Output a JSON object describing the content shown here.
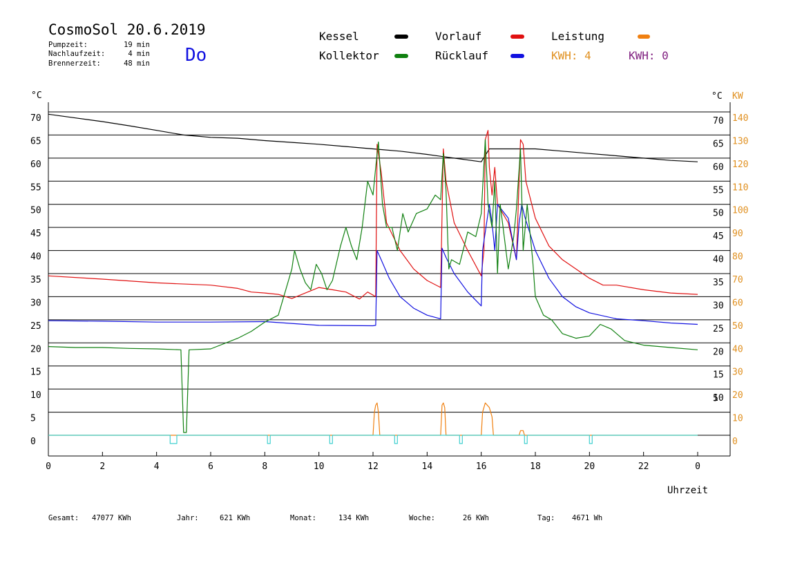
{
  "header": {
    "title": "CosmoSol 20.6.2019",
    "day": "Do",
    "stats": [
      {
        "label": "Pumpzeit:",
        "value": "19 min"
      },
      {
        "label": "Nachlaufzeit:",
        "value": "4 min"
      },
      {
        "label": "Brennerzeit:",
        "value": "48 min"
      }
    ]
  },
  "legend": [
    {
      "label": "Kessel",
      "color": "#000000"
    },
    {
      "label": "Vorlauf",
      "color": "#e01010"
    },
    {
      "label": "Leistung",
      "color": "#f08010"
    },
    {
      "label": "Kollektor",
      "color": "#108010"
    },
    {
      "label": "Rücklauf",
      "color": "#1010e0"
    }
  ],
  "kwh": [
    {
      "label": "KWH: 4",
      "color": "#e09020"
    },
    {
      "label": "KWH: 0",
      "color": "#802080"
    }
  ],
  "footer": [
    {
      "label": "Gesamt:",
      "value": "47077 KWh"
    },
    {
      "label": "Jahr:",
      "value": "621 KWh"
    },
    {
      "label": "Monat:",
      "value": "134 KWh"
    },
    {
      "label": "Woche:",
      "value": "26 KWh"
    },
    {
      "label": "Tag:",
      "value": "4671 Wh"
    }
  ],
  "chart_data": {
    "type": "line",
    "xlabel": "Uhrzeit",
    "ylabel_left": "°C",
    "ylabel_right_temp": "°C",
    "ylabel_right_power": "KW",
    "xlim": [
      0,
      24
    ],
    "ylim": [
      0,
      70
    ],
    "x_ticks": [
      "0",
      "2",
      "4",
      "6",
      "8",
      "10",
      "12",
      "14",
      "16",
      "18",
      "20",
      "22",
      "0"
    ],
    "y_ticks_left": [
      "0",
      "5",
      "10",
      "15",
      "20",
      "25",
      "30",
      "35",
      "40",
      "45",
      "50",
      "55",
      "60",
      "65",
      "70"
    ],
    "y_ticks_right": [
      "5",
      "10",
      "15",
      "20",
      "25",
      "30",
      "35",
      "40",
      "45",
      "50",
      "55",
      "60",
      "65",
      "70"
    ],
    "y_ticks_power": [
      "0",
      "10",
      "20",
      "30",
      "40",
      "50",
      "60",
      "70",
      "80",
      "90",
      "100",
      "110",
      "120",
      "130",
      "140"
    ],
    "grid": true,
    "series": [
      {
        "name": "Kessel",
        "color": "#000000",
        "points": [
          [
            0,
            69.5
          ],
          [
            1,
            68.7
          ],
          [
            2,
            67.9
          ],
          [
            3,
            67
          ],
          [
            4,
            66
          ],
          [
            5,
            65
          ],
          [
            6,
            64.5
          ],
          [
            7,
            64.3
          ],
          [
            8,
            63.8
          ],
          [
            9,
            63.4
          ],
          [
            10,
            63
          ],
          [
            11,
            62.5
          ],
          [
            12,
            62
          ],
          [
            13,
            61.5
          ],
          [
            14,
            60.8
          ],
          [
            15,
            60
          ],
          [
            16,
            59.2
          ],
          [
            16.3,
            62
          ],
          [
            17,
            62
          ],
          [
            17.5,
            62
          ],
          [
            18,
            62
          ],
          [
            19,
            61.5
          ],
          [
            20,
            61
          ],
          [
            21,
            60.5
          ],
          [
            22,
            60
          ],
          [
            23,
            59.5
          ],
          [
            24,
            59.2
          ]
        ]
      },
      {
        "name": "Vorlauf",
        "color": "#e01010",
        "points": [
          [
            0,
            34.5
          ],
          [
            2,
            33.8
          ],
          [
            4,
            33
          ],
          [
            6,
            32.5
          ],
          [
            7,
            31.8
          ],
          [
            7.5,
            31
          ],
          [
            8,
            30.8
          ],
          [
            8.5,
            30.5
          ],
          [
            9,
            29.6
          ],
          [
            9.5,
            30.8
          ],
          [
            10,
            32
          ],
          [
            10.5,
            31.5
          ],
          [
            11,
            31
          ],
          [
            11.5,
            29.5
          ],
          [
            11.8,
            31
          ],
          [
            12.1,
            30
          ],
          [
            12.15,
            63
          ],
          [
            12.3,
            57
          ],
          [
            12.5,
            46
          ],
          [
            13,
            40
          ],
          [
            13.5,
            36
          ],
          [
            14,
            33.5
          ],
          [
            14.5,
            32
          ],
          [
            14.6,
            62
          ],
          [
            14.7,
            55
          ],
          [
            15,
            46
          ],
          [
            15.5,
            40
          ],
          [
            16,
            34.5
          ],
          [
            16.1,
            40
          ],
          [
            16.15,
            64
          ],
          [
            16.25,
            66
          ],
          [
            16.3,
            58
          ],
          [
            16.4,
            52
          ],
          [
            16.5,
            58
          ],
          [
            16.6,
            50
          ],
          [
            17,
            46
          ],
          [
            17.3,
            38
          ],
          [
            17.45,
            64
          ],
          [
            17.55,
            63
          ],
          [
            17.65,
            55
          ],
          [
            18,
            47
          ],
          [
            18.5,
            41
          ],
          [
            19,
            38
          ],
          [
            20,
            34
          ],
          [
            20.5,
            32.5
          ],
          [
            21,
            32.5
          ],
          [
            22,
            31.5
          ],
          [
            23,
            30.8
          ],
          [
            24,
            30.5
          ]
        ]
      },
      {
        "name": "Rücklauf",
        "color": "#1010e0",
        "points": [
          [
            0,
            24.8
          ],
          [
            2,
            24.7
          ],
          [
            4,
            24.5
          ],
          [
            6,
            24.5
          ],
          [
            8,
            24.6
          ],
          [
            10,
            23.8
          ],
          [
            12,
            23.7
          ],
          [
            12.1,
            23.8
          ],
          [
            12.15,
            40
          ],
          [
            12.3,
            38
          ],
          [
            12.6,
            34
          ],
          [
            13,
            30
          ],
          [
            13.5,
            27.5
          ],
          [
            14,
            26
          ],
          [
            14.5,
            25.2
          ],
          [
            14.55,
            40.5
          ],
          [
            14.7,
            38.5
          ],
          [
            15,
            35
          ],
          [
            15.5,
            31
          ],
          [
            16,
            28
          ],
          [
            16.05,
            40
          ],
          [
            16.3,
            50
          ],
          [
            16.4,
            46
          ],
          [
            16.5,
            40
          ],
          [
            16.6,
            50
          ],
          [
            17,
            47
          ],
          [
            17.3,
            38
          ],
          [
            17.4,
            46
          ],
          [
            17.5,
            50
          ],
          [
            17.6,
            47.5
          ],
          [
            18,
            40
          ],
          [
            18.5,
            34
          ],
          [
            19,
            30
          ],
          [
            19.5,
            27.8
          ],
          [
            20,
            26.5
          ],
          [
            21,
            25.2
          ],
          [
            22,
            24.8
          ],
          [
            23,
            24.3
          ],
          [
            24,
            24
          ]
        ]
      },
      {
        "name": "Kollektor",
        "color": "#108010",
        "points": [
          [
            0,
            19.2
          ],
          [
            1,
            19
          ],
          [
            2,
            19
          ],
          [
            3,
            18.8
          ],
          [
            4,
            18.7
          ],
          [
            4.9,
            18.5
          ],
          [
            5.0,
            0.6
          ],
          [
            5.1,
            0.6
          ],
          [
            5.2,
            18.5
          ],
          [
            6,
            18.7
          ],
          [
            7,
            21
          ],
          [
            7.5,
            22.5
          ],
          [
            8,
            24.5
          ],
          [
            8.5,
            26
          ],
          [
            8.8,
            32
          ],
          [
            9,
            36
          ],
          [
            9.1,
            40
          ],
          [
            9.3,
            36
          ],
          [
            9.5,
            33
          ],
          [
            9.7,
            31.5
          ],
          [
            9.9,
            37
          ],
          [
            10.1,
            35
          ],
          [
            10.3,
            31.5
          ],
          [
            10.5,
            33.5
          ],
          [
            10.8,
            41
          ],
          [
            11,
            45
          ],
          [
            11.2,
            41
          ],
          [
            11.4,
            38
          ],
          [
            11.6,
            45
          ],
          [
            11.8,
            55
          ],
          [
            12,
            52
          ],
          [
            12.1,
            58
          ],
          [
            12.2,
            63.5
          ],
          [
            12.35,
            50
          ],
          [
            12.5,
            45
          ],
          [
            12.7,
            45
          ],
          [
            12.9,
            40
          ],
          [
            13.1,
            48
          ],
          [
            13.3,
            44
          ],
          [
            13.6,
            48
          ],
          [
            14,
            49
          ],
          [
            14.3,
            52
          ],
          [
            14.5,
            51
          ],
          [
            14.6,
            61
          ],
          [
            14.7,
            53
          ],
          [
            14.8,
            36
          ],
          [
            14.9,
            38
          ],
          [
            15.2,
            37
          ],
          [
            15.5,
            44
          ],
          [
            15.8,
            43
          ],
          [
            16,
            48
          ],
          [
            16.15,
            64
          ],
          [
            16.25,
            50
          ],
          [
            16.4,
            45
          ],
          [
            16.5,
            55
          ],
          [
            16.6,
            35
          ],
          [
            16.7,
            50
          ],
          [
            17,
            36
          ],
          [
            17.2,
            43
          ],
          [
            17.3,
            49
          ],
          [
            17.45,
            62
          ],
          [
            17.55,
            40
          ],
          [
            17.7,
            50
          ],
          [
            17.9,
            38
          ],
          [
            18,
            30
          ],
          [
            18.3,
            26
          ],
          [
            18.6,
            25
          ],
          [
            19,
            22
          ],
          [
            19.5,
            21
          ],
          [
            20,
            21.5
          ],
          [
            20.4,
            24
          ],
          [
            20.8,
            23
          ],
          [
            21.3,
            20.5
          ],
          [
            22,
            19.5
          ],
          [
            23,
            19
          ],
          [
            24,
            18.5
          ]
        ]
      },
      {
        "name": "Leistung",
        "color": "#f08010",
        "axis": "power",
        "points": [
          [
            0,
            0
          ],
          [
            12.0,
            0
          ],
          [
            12.05,
            10
          ],
          [
            12.1,
            13
          ],
          [
            12.15,
            14
          ],
          [
            12.2,
            10
          ],
          [
            12.25,
            0
          ],
          [
            14.5,
            0
          ],
          [
            14.55,
            13
          ],
          [
            14.6,
            14
          ],
          [
            14.65,
            12
          ],
          [
            14.7,
            0
          ],
          [
            16.0,
            0
          ],
          [
            16.05,
            10
          ],
          [
            16.15,
            14
          ],
          [
            16.3,
            12
          ],
          [
            16.4,
            8
          ],
          [
            16.45,
            0
          ],
          [
            17.4,
            0
          ],
          [
            17.45,
            2
          ],
          [
            17.55,
            2
          ],
          [
            17.6,
            0
          ],
          [
            24,
            0
          ]
        ]
      },
      {
        "name": "Pumpe",
        "color": "#40d0d0",
        "points": [
          [
            0,
            0
          ],
          [
            4.5,
            0
          ],
          [
            4.5,
            -2
          ],
          [
            4.75,
            -2
          ],
          [
            4.75,
            0
          ],
          [
            8.1,
            0
          ],
          [
            8.1,
            -2
          ],
          [
            8.2,
            -2
          ],
          [
            8.2,
            0
          ],
          [
            10.4,
            0
          ],
          [
            10.4,
            -2
          ],
          [
            10.5,
            -2
          ],
          [
            10.5,
            0
          ],
          [
            12.8,
            0
          ],
          [
            12.8,
            -2
          ],
          [
            12.9,
            -2
          ],
          [
            12.9,
            0
          ],
          [
            15.2,
            0
          ],
          [
            15.2,
            -2
          ],
          [
            15.3,
            -2
          ],
          [
            15.3,
            0
          ],
          [
            17.6,
            0
          ],
          [
            17.6,
            -2
          ],
          [
            17.7,
            -2
          ],
          [
            17.7,
            0
          ],
          [
            20.0,
            0
          ],
          [
            20.0,
            -2
          ],
          [
            20.1,
            -2
          ],
          [
            20.1,
            0
          ],
          [
            24,
            0
          ]
        ]
      }
    ]
  }
}
